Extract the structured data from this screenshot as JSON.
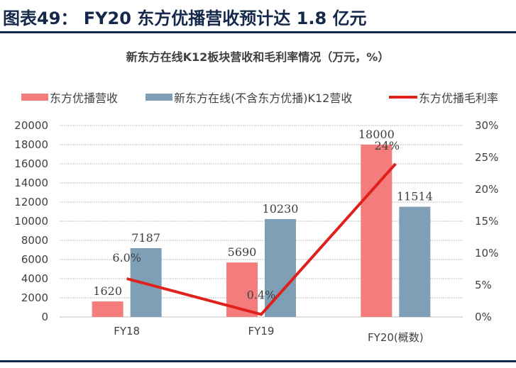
{
  "figure_title": "图表49： FY20 东方优播营收预计达 1.8 亿元",
  "colors": {
    "header": "#14294a",
    "series_bar1": "#f47c7c",
    "series_bar2": "#7f9fb7",
    "series_line": "#e0201b",
    "grid": "#bfbfbf",
    "axis_text": "#404040"
  },
  "chart_data": {
    "type": "bar",
    "title": "新东方在线K12板块营收和毛利率情况（万元，%）",
    "categories": [
      "FY18",
      "FY19",
      "FY20(概数)"
    ],
    "series": [
      {
        "name": "东方优播营收",
        "type": "bar",
        "axis": "left",
        "values": [
          1620,
          5690,
          18000
        ],
        "labels": [
          "1620",
          "5690",
          "18000"
        ]
      },
      {
        "name": "新东方在线(不含东方优播)K12营收",
        "type": "bar",
        "axis": "left",
        "values": [
          7187,
          10230,
          11514
        ],
        "labels": [
          "7187",
          "10230",
          "11514"
        ]
      },
      {
        "name": "东方优播毛利率",
        "type": "line",
        "axis": "right",
        "values": [
          6.0,
          0.4,
          24
        ],
        "labels": [
          "6.0%",
          "0.4%",
          "24%"
        ]
      }
    ],
    "y_left": {
      "min": 0,
      "max": 20000,
      "ticks": [
        "0",
        "2000",
        "4000",
        "6000",
        "8000",
        "10000",
        "12000",
        "14000",
        "16000",
        "18000",
        "20000"
      ]
    },
    "y_right": {
      "min": 0,
      "max": 30,
      "ticks": [
        "0%",
        "5%",
        "10%",
        "15%",
        "20%",
        "25%",
        "30%"
      ]
    },
    "grid": true,
    "legend_position": "top"
  }
}
